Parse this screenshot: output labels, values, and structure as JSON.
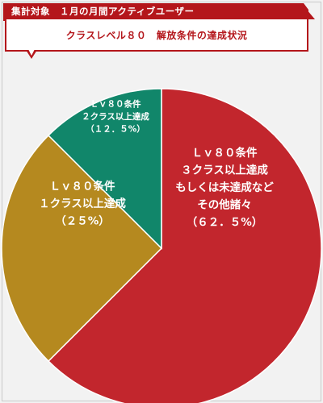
{
  "header": {
    "title": "集計対象　１月の月間アクティブユーザー",
    "subtitle": "クラスレベル８０　解放条件の達成状況",
    "accent_color": "#b4161b"
  },
  "chart_data": {
    "type": "pie",
    "title": "クラスレベル８０　解放条件の達成状況",
    "start_angle_deg": 0,
    "direction": "clockwise",
    "slices": [
      {
        "id": "lv80-3class",
        "value": 62.5,
        "color": "#c2262d",
        "label_lines": [
          "Ｌｖ８０条件",
          "３クラス以上達成",
          "もしくは未達成など",
          "その他諸々",
          "（６２．５%）"
        ]
      },
      {
        "id": "lv80-1class",
        "value": 25,
        "color": "#b5891f",
        "label_lines": [
          "Ｌｖ８０条件",
          "１クラス以上達成",
          "（２５%）"
        ]
      },
      {
        "id": "lv80-2class",
        "value": 12.5,
        "color": "#11866a",
        "label_lines": [
          "Ｌｖ８０条件",
          "２クラス以上達成",
          "（１２．５%）"
        ]
      }
    ]
  }
}
